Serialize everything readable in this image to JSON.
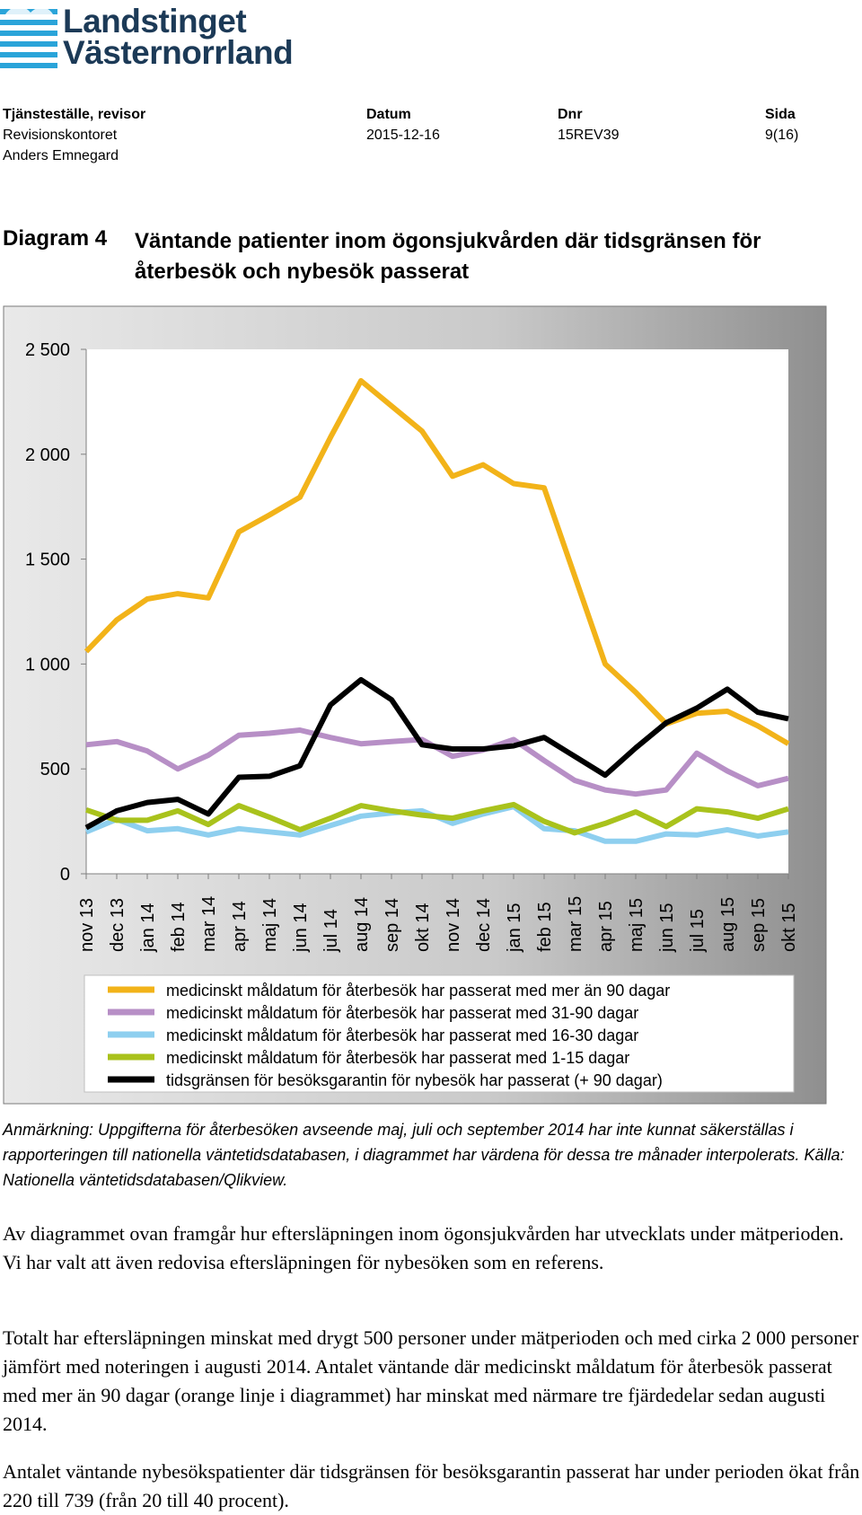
{
  "org": {
    "line1": "Landstinget",
    "line2": "Västernorrland",
    "brand_color": "#1c3a57",
    "stripe_color": "#2aa4d9"
  },
  "header": {
    "col1_label": "Tjänsteställe, revisor",
    "col1_value1": "Revisionskontoret",
    "col1_value2": "Anders Emnegard",
    "col2_label": "Datum",
    "col2_value": "2015-12-16",
    "col3_label": "Dnr",
    "col3_value": "15REV39",
    "col4_label": "Sida",
    "col4_value": "9(16)"
  },
  "diagram": {
    "number": "Diagram 4",
    "title": "Väntande patienter inom ögonsjukvården där tidsgränsen för återbesök och nybesök passerat"
  },
  "chart_data": {
    "type": "line",
    "title": "",
    "xlabel": "",
    "ylabel": "",
    "ylim": [
      0,
      2500
    ],
    "y_ticks": [
      0,
      500,
      1000,
      1500,
      2000,
      2500
    ],
    "y_tick_labels": [
      "0",
      "500",
      "1 000",
      "1 500",
      "2 000",
      "2 500"
    ],
    "grid": false,
    "legend_position": "bottom",
    "categories": [
      "nov 13",
      "dec 13",
      "jan 14",
      "feb 14",
      "mar 14",
      "apr 14",
      "maj 14",
      "jun 14",
      "jul 14",
      "aug 14",
      "sep 14",
      "okt 14",
      "nov 14",
      "dec 14",
      "jan 15",
      "feb 15",
      "mar 15",
      "apr 15",
      "maj 15",
      "jun 15",
      "jul 15",
      "aug 15",
      "sep 15",
      "okt 15"
    ],
    "series": [
      {
        "name": "medicinskt måldatum för återbesök har passerat med mer än 90 dagar",
        "color": "#f2b319",
        "values": [
          1060,
          1210,
          1310,
          1335,
          1315,
          1630,
          1710,
          1795,
          2080,
          2350,
          2230,
          2110,
          1895,
          1950,
          1860,
          1840,
          1420,
          1000,
          865,
          715,
          765,
          775,
          705,
          620
        ]
      },
      {
        "name": "medicinskt måldatum för återbesök har passerat med 31-90 dagar",
        "color": "#b78fc6",
        "values": [
          615,
          630,
          585,
          500,
          565,
          660,
          670,
          685,
          650,
          620,
          630,
          640,
          560,
          590,
          640,
          540,
          445,
          400,
          380,
          400,
          575,
          490,
          420,
          455
        ]
      },
      {
        "name": "medicinskt måldatum för återbesök har passerat med 16-30 dagar",
        "color": "#8ecfef",
        "values": [
          200,
          260,
          205,
          215,
          185,
          215,
          200,
          185,
          230,
          275,
          290,
          300,
          240,
          285,
          320,
          215,
          205,
          155,
          155,
          190,
          185,
          210,
          180,
          200
        ]
      },
      {
        "name": "medicinskt måldatum för återbesök har passerat med 1-15 dagar",
        "color": "#a9c21c",
        "values": [
          305,
          255,
          255,
          300,
          235,
          325,
          270,
          210,
          265,
          325,
          300,
          280,
          265,
          300,
          330,
          250,
          195,
          240,
          295,
          225,
          310,
          295,
          265,
          310
        ]
      },
      {
        "name": "tidsgränsen för besöksgarantin för nybesök har passerat (+ 90 dagar)",
        "color": "#000000",
        "values": [
          220,
          300,
          340,
          355,
          285,
          460,
          465,
          515,
          805,
          925,
          830,
          615,
          595,
          595,
          610,
          650,
          560,
          470,
          600,
          720,
          790,
          880,
          770,
          739
        ]
      }
    ]
  },
  "note": "Anmärkning: Uppgifterna för återbesöken avseende maj, juli och september 2014 har inte kunnat säkerställas i rapporteringen till nationella väntetidsdatabasen, i diagrammet har värdena för dessa tre månader interpolerats. Källa: Nationella väntetidsdatabasen/Qlikview.",
  "paragraphs": {
    "p1": "Av diagrammet ovan framgår hur eftersläpningen inom ögonsjukvården har utvecklats under mätperioden. Vi har valt att även redovisa eftersläpningen för nybesöken som en referens.",
    "p2": "Totalt har eftersläpningen minskat med drygt 500 personer under mätperioden och med cirka 2 000 personer jämfört med noteringen i augusti 2014. Antalet väntande där medicinskt måldatum för återbesök passerat med mer än 90 dagar (orange linje i diagrammet) har minskat med närmare tre fjärdedelar sedan augusti 2014.",
    "p3": "Antalet väntande nybesökspatienter där tidsgränsen för besöksgarantin passerat har under perioden ökat från 220 till 739 (från 20 till 40 procent)."
  }
}
